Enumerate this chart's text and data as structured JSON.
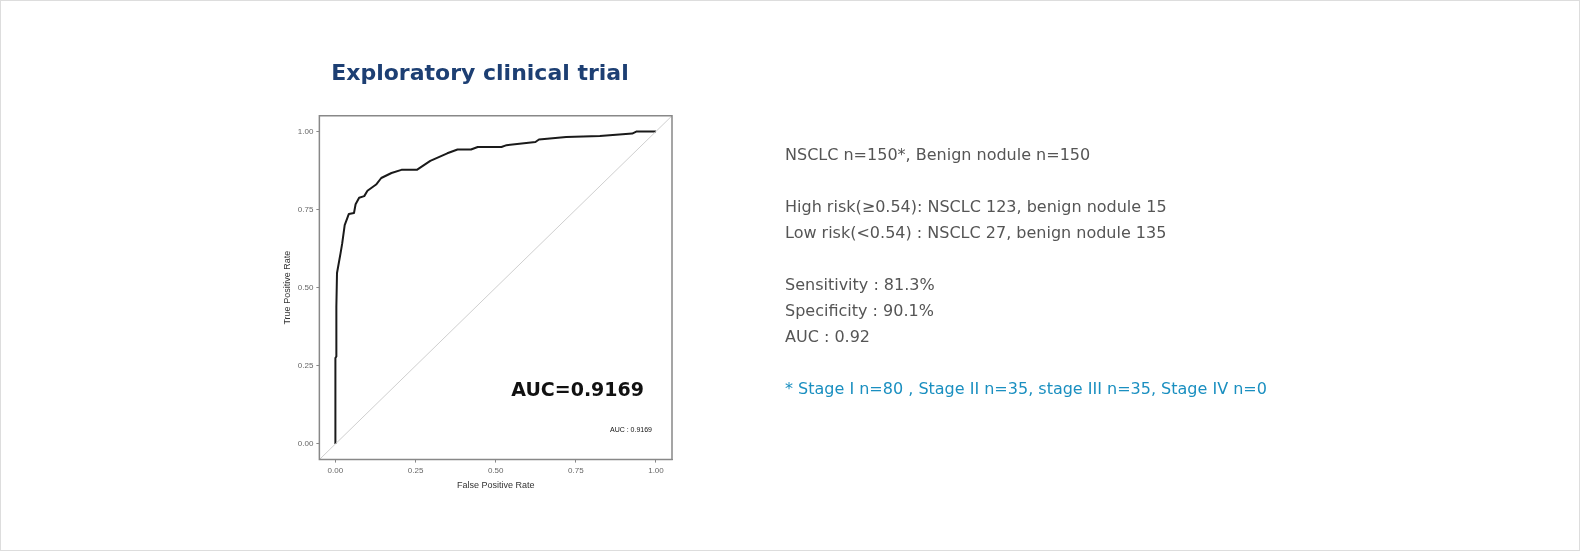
{
  "chart_data": {
    "type": "line",
    "title": "Exploratory clinical trial",
    "xlabel": "False Positive Rate",
    "ylabel": "True Positive Rate",
    "xlim": [
      -0.05,
      1.05
    ],
    "ylim": [
      -0.05,
      1.05
    ],
    "xticks": [
      {
        "value": 0,
        "label": "0.00"
      },
      {
        "value": 0.25,
        "label": "0.25"
      },
      {
        "value": 0.5,
        "label": "0.50"
      },
      {
        "value": 0.75,
        "label": "0.75"
      },
      {
        "value": 1,
        "label": "1.00"
      }
    ],
    "yticks": [
      {
        "value": 0,
        "label": "0.00"
      },
      {
        "value": 0.25,
        "label": "0.25"
      },
      {
        "value": 0.5,
        "label": "0.50"
      },
      {
        "value": 0.75,
        "label": "0.75"
      },
      {
        "value": 1,
        "label": "1.00"
      }
    ],
    "grid": false,
    "legend": false,
    "marker": "none",
    "line_style": "solid",
    "series": [
      {
        "color": "#cfcfcf",
        "x": [
          -0.05,
          1.05
        ],
        "values": [
          -0.05,
          1.05
        ]
      },
      {
        "color": "#1a1a1a",
        "x": [
          0,
          0,
          0.003,
          0.003,
          0.005,
          0.016,
          0.021,
          0.029,
          0.042,
          0.058,
          0.063,
          0.074,
          0.09,
          0.1,
          0.127,
          0.143,
          0.175,
          0.206,
          0.254,
          0.296,
          0.349,
          0.381,
          0.423,
          0.444,
          0.518,
          0.534,
          0.624,
          0.635,
          0.72,
          0.825,
          0.926,
          0.94,
          0.99,
          1
        ],
        "values": [
          0,
          0.275,
          0.28,
          0.44,
          0.547,
          0.61,
          0.64,
          0.7,
          0.736,
          0.739,
          0.767,
          0.788,
          0.793,
          0.81,
          0.83,
          0.851,
          0.867,
          0.877,
          0.877,
          0.906,
          0.93,
          0.942,
          0.942,
          0.95,
          0.95,
          0.956,
          0.966,
          0.974,
          0.982,
          0.985,
          0.993,
          1,
          1,
          1
        ]
      }
    ],
    "annotations": [
      "AUC=0.9169",
      "AUC : 0.9169",
      "NSCLC n=150*, Benign nodule n=150",
      "High risk(≥0.54): NSCLC 123, benign nodule 15",
      "Low risk(<0.54) : NSCLC 27, benign nodule 135",
      "Sensitivity : 81.3%",
      "Specificity : 90.1%",
      "AUC : 0.92",
      "* Stage I n=80 , Stage II n=35, stage III n=35, Stage IV n=0"
    ]
  }
}
